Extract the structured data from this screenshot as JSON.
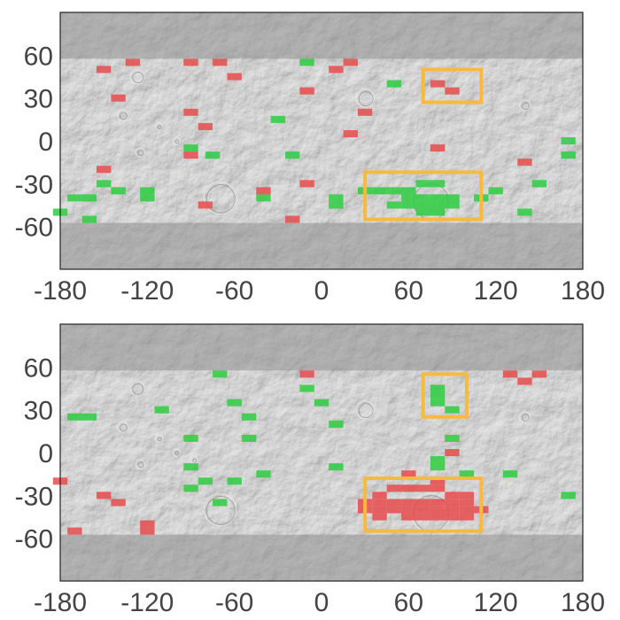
{
  "colors": {
    "positive": "#2ecc40",
    "negative": "#e74c4c",
    "highlight": "#f7b93e",
    "map_base": "#b8b8b8",
    "polar_band": "#8f8f8f",
    "tick_text": "#444444"
  },
  "chart_data": [
    {
      "type": "heatmap",
      "xlabel": "",
      "ylabel": "",
      "xlim": [
        -180,
        180
      ],
      "ylim": [
        -90,
        90
      ],
      "x_ticks": [
        "-180",
        "-120",
        "-60",
        "0",
        "60",
        "120",
        "180"
      ],
      "y_ticks": [
        "60",
        "30",
        "0",
        "-30",
        "-60"
      ],
      "grid": false,
      "cell_size_deg": [
        10,
        5
      ],
      "masked_above_lat": 57.5,
      "masked_below_lat": -57.5,
      "green_cells": [
        [
          -10,
          55
        ],
        [
          50,
          40
        ],
        [
          -30,
          15
        ],
        [
          -90,
          -5
        ],
        [
          -75,
          -10
        ],
        [
          -20,
          -10
        ],
        [
          -150,
          -30
        ],
        [
          -140,
          -35
        ],
        [
          -170,
          -40
        ],
        [
          -160,
          -40
        ],
        [
          -120,
          -35
        ],
        [
          -120,
          -40
        ],
        [
          -180,
          -50
        ],
        [
          -160,
          -55
        ],
        [
          -40,
          -40
        ],
        [
          10,
          -40
        ],
        [
          10,
          -45
        ],
        [
          30,
          -35
        ],
        [
          40,
          -35
        ],
        [
          50,
          -35
        ],
        [
          60,
          -35
        ],
        [
          70,
          -30
        ],
        [
          80,
          -30
        ],
        [
          60,
          -40
        ],
        [
          70,
          -40
        ],
        [
          80,
          -40
        ],
        [
          90,
          -40
        ],
        [
          50,
          -45
        ],
        [
          60,
          -45
        ],
        [
          70,
          -45
        ],
        [
          80,
          -45
        ],
        [
          90,
          -45
        ],
        [
          70,
          -50
        ],
        [
          80,
          -50
        ],
        [
          110,
          -40
        ],
        [
          120,
          -35
        ],
        [
          150,
          -30
        ],
        [
          140,
          -50
        ],
        [
          170,
          0
        ],
        [
          170,
          -10
        ]
      ],
      "red_cells": [
        [
          -150,
          50
        ],
        [
          -130,
          55
        ],
        [
          -90,
          55
        ],
        [
          -70,
          55
        ],
        [
          -60,
          45
        ],
        [
          -10,
          35
        ],
        [
          10,
          50
        ],
        [
          20,
          55
        ],
        [
          80,
          40
        ],
        [
          90,
          35
        ],
        [
          30,
          20
        ],
        [
          -140,
          30
        ],
        [
          -90,
          20
        ],
        [
          -80,
          10
        ],
        [
          20,
          5
        ],
        [
          -90,
          -10
        ],
        [
          -150,
          -20
        ],
        [
          -40,
          -35
        ],
        [
          -10,
          -30
        ],
        [
          -20,
          -55
        ],
        [
          -80,
          -45
        ],
        [
          80,
          -5
        ],
        [
          140,
          -15
        ]
      ],
      "highlight_boxes": [
        [
          30,
          -55,
          110,
          -22
        ],
        [
          70,
          27,
          110,
          50
        ]
      ]
    },
    {
      "type": "heatmap",
      "xlabel": "",
      "ylabel": "",
      "xlim": [
        -180,
        180
      ],
      "ylim": [
        -90,
        90
      ],
      "x_ticks": [
        "-180",
        "-120",
        "-60",
        "0",
        "60",
        "120",
        "180"
      ],
      "y_ticks": [
        "60",
        "30",
        "0",
        "-30",
        "-60"
      ],
      "grid": false,
      "cell_size_deg": [
        10,
        5
      ],
      "masked_above_lat": 57.5,
      "masked_below_lat": -57.5,
      "green_cells": [
        [
          -170,
          25
        ],
        [
          -160,
          25
        ],
        [
          -110,
          30
        ],
        [
          -70,
          55
        ],
        [
          -60,
          35
        ],
        [
          -50,
          25
        ],
        [
          -90,
          10
        ],
        [
          -50,
          10
        ],
        [
          -10,
          45
        ],
        [
          0,
          35
        ],
        [
          10,
          20
        ],
        [
          10,
          -10
        ],
        [
          -90,
          -10
        ],
        [
          -80,
          -20
        ],
        [
          -60,
          -20
        ],
        [
          -90,
          -25
        ],
        [
          -40,
          -15
        ],
        [
          -70,
          -35
        ],
        [
          80,
          45
        ],
        [
          80,
          40
        ],
        [
          80,
          35
        ],
        [
          90,
          30
        ],
        [
          90,
          10
        ],
        [
          80,
          -5
        ],
        [
          80,
          -10
        ],
        [
          100,
          -15
        ],
        [
          130,
          -15
        ],
        [
          170,
          -30
        ]
      ],
      "red_cells": [
        [
          -10,
          55
        ],
        [
          130,
          55
        ],
        [
          150,
          55
        ],
        [
          140,
          50
        ],
        [
          90,
          0
        ],
        [
          60,
          -15
        ],
        [
          40,
          -30
        ],
        [
          50,
          -25
        ],
        [
          60,
          -25
        ],
        [
          70,
          -25
        ],
        [
          80,
          -20
        ],
        [
          80,
          -25
        ],
        [
          90,
          -30
        ],
        [
          100,
          -30
        ],
        [
          30,
          -35
        ],
        [
          40,
          -35
        ],
        [
          50,
          -35
        ],
        [
          60,
          -35
        ],
        [
          70,
          -35
        ],
        [
          80,
          -35
        ],
        [
          90,
          -35
        ],
        [
          100,
          -35
        ],
        [
          110,
          -40
        ],
        [
          30,
          -40
        ],
        [
          40,
          -40
        ],
        [
          50,
          -40
        ],
        [
          60,
          -40
        ],
        [
          70,
          -40
        ],
        [
          80,
          -40
        ],
        [
          90,
          -40
        ],
        [
          100,
          -40
        ],
        [
          40,
          -45
        ],
        [
          60,
          -45
        ],
        [
          70,
          -45
        ],
        [
          80,
          -45
        ],
        [
          90,
          -45
        ],
        [
          100,
          -45
        ],
        [
          -180,
          -20
        ],
        [
          -150,
          -30
        ],
        [
          -140,
          -35
        ],
        [
          -120,
          -50
        ],
        [
          -120,
          -55
        ],
        [
          -170,
          -55
        ]
      ],
      "highlight_boxes": [
        [
          30,
          -55,
          110,
          -18
        ],
        [
          70,
          25,
          100,
          55
        ]
      ]
    }
  ]
}
